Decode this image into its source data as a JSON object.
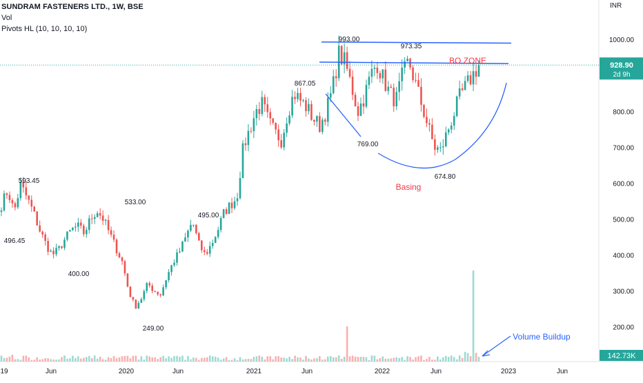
{
  "legend": {
    "title": "SUNDRAM FASTENERS LTD., 1W, BSE",
    "vol": "Vol",
    "pivots": "Pivots HL (10, 10, 10, 10)"
  },
  "currency": "INR",
  "chart_data": {
    "type": "candlestick",
    "y_axis": {
      "min": 105,
      "max": 1110,
      "ticks": [
        200,
        300,
        400,
        500,
        600,
        700,
        800,
        900,
        1000
      ],
      "tick_labels": [
        "200.00",
        "300.00",
        "400.00",
        "500.00",
        "600.00",
        "700.00",
        "800.00",
        "900.00",
        "1000.00"
      ]
    },
    "x_axis": {
      "labels": [
        "19",
        "Jun",
        "2020",
        "Jun",
        "2021",
        "Jun",
        "2022",
        "Jun",
        "2023",
        "Jun"
      ]
    },
    "last_price": {
      "value": 928.9,
      "label": "928.90",
      "countdown": "2d 9h"
    },
    "last_volume": {
      "label": "142.73K"
    },
    "colors": {
      "up": "#26a69a",
      "down": "#ef5350",
      "volume_up": "#9fd9d2",
      "volume_down": "#f7b1ae",
      "trendline": "#2962ff",
      "annotation": "#f23645",
      "price_line": "#26a69a"
    },
    "pivots": [
      {
        "label": "593.45",
        "value": 593.45,
        "kind": "high"
      },
      {
        "label": "496.45",
        "value": 496.45,
        "kind": "low"
      },
      {
        "label": "400.00",
        "value": 400.0,
        "kind": "low"
      },
      {
        "label": "533.00",
        "value": 533.0,
        "kind": "high"
      },
      {
        "label": "249.00",
        "value": 249.0,
        "kind": "low"
      },
      {
        "label": "495.00",
        "value": 495.0,
        "kind": "high"
      },
      {
        "label": "867.05",
        "value": 867.05,
        "kind": "high"
      },
      {
        "label": "993.00",
        "value": 993.0,
        "kind": "high"
      },
      {
        "label": "769.00",
        "value": 769.0,
        "kind": "low"
      },
      {
        "label": "973.35",
        "value": 973.35,
        "kind": "high"
      },
      {
        "label": "674.80",
        "value": 674.8,
        "kind": "low"
      }
    ],
    "annotations": {
      "bo_zone": "BO ZONE",
      "basing": "Basing",
      "volume_buildup": "Volume Buildup"
    },
    "key_prices": [
      540,
      580,
      520,
      595,
      560,
      520,
      470,
      430,
      400,
      415,
      445,
      470,
      480,
      460,
      500,
      525,
      500,
      460,
      420,
      380,
      300,
      255,
      280,
      320,
      300,
      290,
      340,
      380,
      410,
      450,
      495,
      430,
      400,
      430,
      470,
      520,
      540,
      560,
      700,
      750,
      800,
      820,
      770,
      740,
      720,
      800,
      850,
      830,
      810,
      780,
      760,
      800,
      860,
      960,
      935,
      870,
      800,
      840,
      900,
      935,
      890,
      850,
      830,
      900,
      940,
      880,
      820,
      760,
      700,
      690,
      740,
      790,
      840,
      870,
      900,
      929
    ]
  }
}
